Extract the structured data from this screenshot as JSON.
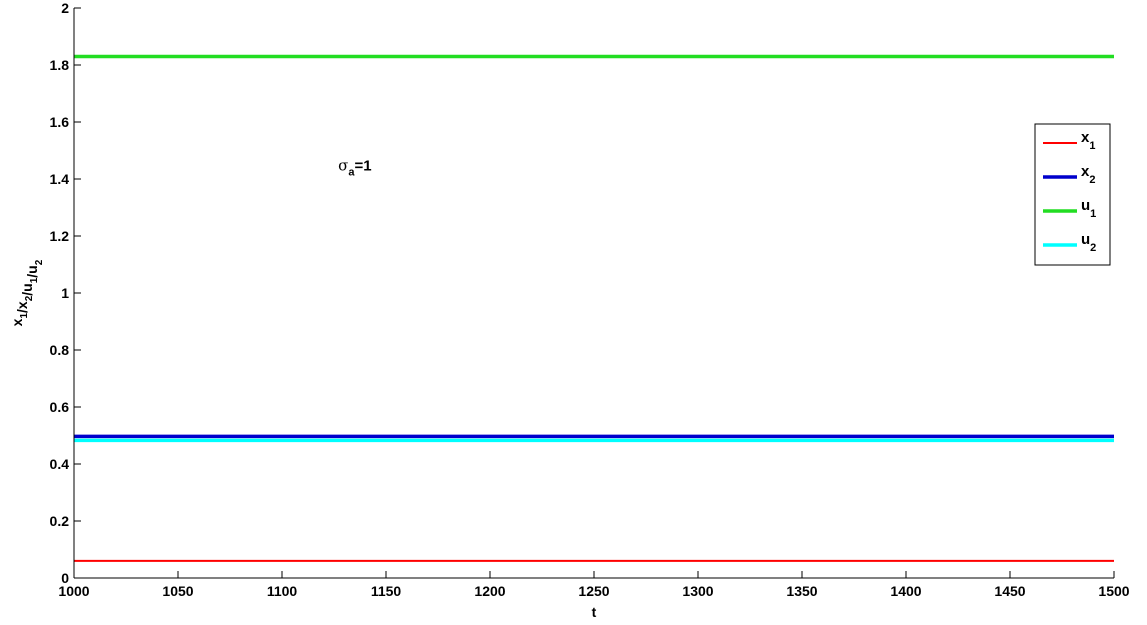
{
  "chart_data": {
    "type": "line",
    "xlabel": "t",
    "ylabel": "x1/x2/u1/u2",
    "ylabel_parts": [
      {
        "text": "x",
        "sub": "1"
      },
      {
        "text": "/x",
        "sub": "2"
      },
      {
        "text": "/u",
        "sub": "1"
      },
      {
        "text": "/u",
        "sub": "2"
      }
    ],
    "xlim": [
      1000,
      1500
    ],
    "ylim": [
      0,
      2
    ],
    "xticks": [
      1000,
      1050,
      1100,
      1150,
      1200,
      1250,
      1300,
      1350,
      1400,
      1450,
      1500
    ],
    "yticks": [
      0,
      0.2,
      0.4,
      0.6,
      0.8,
      1,
      1.2,
      1.4,
      1.6,
      1.8,
      2
    ],
    "ytick_labels": [
      "0",
      "0.2",
      "0.4",
      "0.6",
      "0.8",
      "1",
      "1.2",
      "1.4",
      "1.6",
      "1.8",
      "2"
    ],
    "grid": false,
    "legend_position": "right",
    "annotation": {
      "symbol": "σ",
      "sub": "a",
      "rest": "=1",
      "x": 1127,
      "y": 1.43
    },
    "series": [
      {
        "name": "x1",
        "base": "x",
        "sub": "1",
        "color": "#ff0000",
        "x": [
          1000,
          1500
        ],
        "y": [
          0.06,
          0.06
        ]
      },
      {
        "name": "x2",
        "base": "x",
        "sub": "2",
        "color": "#0000cc",
        "x": [
          1000,
          1500
        ],
        "y": [
          0.497,
          0.497
        ]
      },
      {
        "name": "u1",
        "base": "u",
        "sub": "1",
        "color": "#22dd22",
        "x": [
          1000,
          1500
        ],
        "y": [
          1.83,
          1.83
        ]
      },
      {
        "name": "u2",
        "base": "u",
        "sub": "2",
        "color": "#00ffff",
        "x": [
          1000,
          1500
        ],
        "y": [
          0.483,
          0.483
        ]
      }
    ]
  }
}
